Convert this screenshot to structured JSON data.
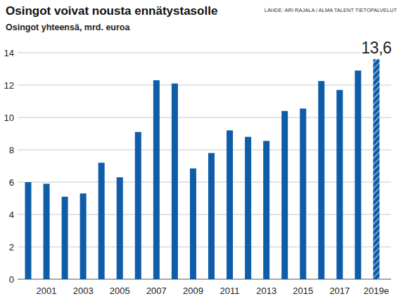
{
  "chart_data": {
    "type": "bar",
    "title": "Osingot voivat nousta ennätystasolle",
    "subtitle": "Osingot yhteensä, mrd. euroa",
    "source": "LÄHDE: ARI RAJALA / ALMA TALENT TIETOPALVELUT",
    "categories": [
      null,
      "2001",
      null,
      "2003",
      null,
      "2005",
      null,
      "2007",
      null,
      "2009",
      null,
      "2011",
      null,
      "2013",
      null,
      "2015",
      null,
      "2017",
      null,
      "2019e"
    ],
    "values": [
      6.0,
      5.9,
      5.1,
      5.3,
      7.2,
      6.3,
      9.1,
      12.3,
      12.1,
      6.85,
      7.8,
      9.2,
      8.8,
      8.55,
      10.4,
      10.55,
      12.25,
      11.7,
      12.9,
      13.6
    ],
    "value_labels": [
      null,
      null,
      null,
      null,
      null,
      null,
      null,
      null,
      null,
      null,
      null,
      null,
      null,
      null,
      null,
      null,
      null,
      null,
      null,
      "13,6"
    ],
    "color": "#0f5ca8",
    "ylim": [
      0,
      14
    ],
    "yticks": [
      0,
      2,
      4,
      6,
      8,
      10,
      12,
      14
    ],
    "grid": true
  }
}
